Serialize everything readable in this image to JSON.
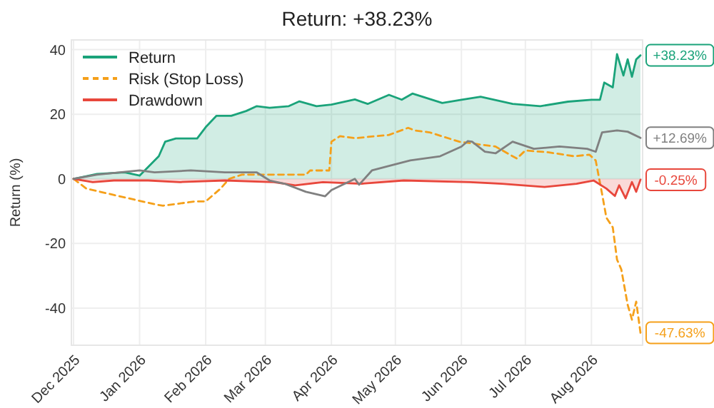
{
  "chart_data": {
    "type": "line",
    "title": "Return: +38.23%",
    "ylabel": "Return (%)",
    "xlim": [
      "2025-11-30",
      "2026-08-25"
    ],
    "ylim": [
      -51.5,
      43
    ],
    "yticks": [
      -40,
      -20,
      0,
      20,
      40
    ],
    "xticks": [
      {
        "value": "2025-12-01",
        "label": "Dec 2025"
      },
      {
        "value": "2026-01-01",
        "label": "Jan 2026"
      },
      {
        "value": "2026-02-01",
        "label": "Feb 2026"
      },
      {
        "value": "2026-03-01",
        "label": "Mar 2026"
      },
      {
        "value": "2026-04-01",
        "label": "Apr 2026"
      },
      {
        "value": "2026-05-01",
        "label": "May 2026"
      },
      {
        "value": "2026-06-01",
        "label": "Jun 2026"
      },
      {
        "value": "2026-07-01",
        "label": "Jul 2026"
      },
      {
        "value": "2026-08-01",
        "label": "Aug 2026"
      }
    ],
    "grid": true,
    "legend": "top left",
    "series": [
      {
        "name": "Return",
        "type": "area",
        "color": "#1aa37a",
        "line_style": "solid",
        "x": [
          "2025-12-01",
          "2025-12-12",
          "2025-12-25",
          "2026-01-01",
          "2026-01-10",
          "2026-01-13",
          "2026-01-18",
          "2026-01-28",
          "2026-02-01",
          "2026-02-06",
          "2026-02-13",
          "2026-02-20",
          "2026-02-25",
          "2026-03-03",
          "2026-03-12",
          "2026-03-17",
          "2026-03-25",
          "2026-04-01",
          "2026-04-12",
          "2026-04-18",
          "2026-04-28",
          "2026-05-04",
          "2026-05-09",
          "2026-05-23",
          "2026-06-01",
          "2026-06-10",
          "2026-06-25",
          "2026-07-08",
          "2026-07-21",
          "2026-08-01",
          "2026-08-05",
          "2026-08-07",
          "2026-08-11",
          "2026-08-13",
          "2026-08-16",
          "2026-08-18",
          "2026-08-20",
          "2026-08-22",
          "2026-08-24"
        ],
        "values": [
          0,
          1.5,
          2,
          1,
          7,
          11.5,
          12.5,
          12.5,
          16,
          19.5,
          19.5,
          21,
          22.5,
          22,
          22.5,
          24,
          22.5,
          23,
          24.6,
          23.2,
          26,
          24.5,
          26.4,
          23.5,
          24.5,
          25.4,
          23.2,
          22.5,
          23.9,
          24.5,
          24.5,
          29.8,
          28.3,
          38.6,
          32,
          37,
          31.6,
          37,
          38.23
        ]
      },
      {
        "name": "Risk (Stop Loss)",
        "color": "#f5a01a",
        "line_style": "dashed",
        "x": [
          "2025-12-01",
          "2025-12-07",
          "2025-12-20",
          "2026-01-09",
          "2026-01-12",
          "2026-01-27",
          "2026-02-01",
          "2026-02-08",
          "2026-02-12",
          "2026-02-18",
          "2026-03-20",
          "2026-03-22",
          "2026-03-31",
          "2026-04-01",
          "2026-04-05",
          "2026-04-12",
          "2026-04-28",
          "2026-05-07",
          "2026-05-10",
          "2026-05-17",
          "2026-05-31",
          "2026-06-17",
          "2026-06-25",
          "2026-06-27",
          "2026-07-01",
          "2026-07-12",
          "2026-07-24",
          "2026-07-31",
          "2026-08-03",
          "2026-08-06",
          "2026-08-08",
          "2026-08-11",
          "2026-08-13",
          "2026-08-15",
          "2026-08-18",
          "2026-08-20",
          "2026-08-22",
          "2026-08-24"
        ],
        "values": [
          0,
          -3,
          -5,
          -8,
          -8.3,
          -7,
          -7,
          -3,
          0,
          1.3,
          1.3,
          2.6,
          2.6,
          11.5,
          13.2,
          12.6,
          13.6,
          15.8,
          15,
          14.4,
          11.5,
          10,
          7,
          6.3,
          8.8,
          8.2,
          7,
          7.5,
          5.7,
          -4.7,
          -12,
          -15,
          -25,
          -28,
          -39,
          -43.6,
          -38,
          -47.63
        ]
      },
      {
        "name": "Drawdown",
        "type": "area",
        "color": "#e8473c",
        "line_style": "solid",
        "x": [
          "2025-12-01",
          "2025-12-10",
          "2025-12-20",
          "2026-01-05",
          "2026-01-20",
          "2026-02-10",
          "2026-03-05",
          "2026-03-15",
          "2026-03-28",
          "2026-04-15",
          "2026-05-05",
          "2026-06-05",
          "2026-06-20",
          "2026-07-10",
          "2026-07-25",
          "2026-08-02",
          "2026-08-08",
          "2026-08-12",
          "2026-08-14",
          "2026-08-17",
          "2026-08-20",
          "2026-08-22",
          "2026-08-24"
        ],
        "values": [
          0,
          -1,
          -0.5,
          -0.5,
          -1,
          -0.5,
          -1,
          -2,
          -1,
          -1.5,
          -0.5,
          -1,
          -1.5,
          -2.5,
          -1.5,
          -0.5,
          -3,
          -5.3,
          -2,
          -6,
          -1,
          -4,
          -0.25
        ]
      },
      {
        "color": "#808080",
        "line_style": "solid",
        "x": [
          "2025-12-01",
          "2025-12-12",
          "2026-01-01",
          "2026-01-08",
          "2026-01-25",
          "2026-02-10",
          "2026-02-25",
          "2026-03-03",
          "2026-03-10",
          "2026-03-20",
          "2026-03-29",
          "2026-04-01",
          "2026-04-12",
          "2026-04-14",
          "2026-04-20",
          "2026-04-28",
          "2026-05-08",
          "2026-05-22",
          "2026-06-01",
          "2026-06-04",
          "2026-06-06",
          "2026-06-12",
          "2026-06-17",
          "2026-06-25",
          "2026-07-05",
          "2026-07-17",
          "2026-07-30",
          "2026-08-03",
          "2026-08-06",
          "2026-08-13",
          "2026-08-18",
          "2026-08-24"
        ],
        "values": [
          0,
          1.3,
          2.6,
          2,
          2.6,
          2,
          2,
          -0.5,
          -1.5,
          -4,
          -5.4,
          -3.5,
          0,
          -1.8,
          2.6,
          4,
          5.7,
          7,
          10,
          11.7,
          11.5,
          8.4,
          7.9,
          11.5,
          9.3,
          10,
          9.3,
          8.4,
          14.4,
          15,
          14.6,
          12.69
        ]
      }
    ],
    "annotations": [
      {
        "text": "+38.23%",
        "x": "2026-08-24",
        "y": 38.23
      },
      {
        "text": "+12.69%",
        "x": "2026-08-24",
        "y": 12.69
      },
      {
        "text": "-0.25%",
        "x": "2026-08-24",
        "y": -0.25
      },
      {
        "text": "-47.63%",
        "x": "2026-08-24",
        "y": -47.63
      }
    ]
  }
}
